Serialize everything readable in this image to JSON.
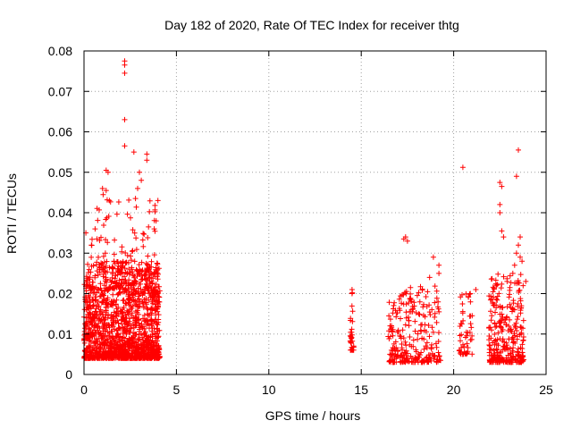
{
  "chart_data": {
    "type": "scatter",
    "title": "Day 182 of 2020, Rate Of TEC Index for receiver thtg",
    "xlabel": "GPS time / hours",
    "ylabel": "ROTI / TECUs",
    "xlim": [
      0,
      25
    ],
    "ylim": [
      0,
      0.08
    ],
    "xticks": [
      "0",
      "5",
      "10",
      "15",
      "20",
      "25"
    ],
    "yticks": [
      "0",
      "0.01",
      "0.02",
      "0.03",
      "0.04",
      "0.05",
      "0.06",
      "0.07",
      "0.08"
    ],
    "grid": true,
    "marker": "+",
    "color": "#ff0000",
    "clusters": [
      {
        "x_range": [
          0.0,
          4.1
        ],
        "y_range": [
          0.004,
          0.028
        ],
        "count": 1500
      },
      {
        "x_range": [
          0.3,
          4.0
        ],
        "y_range": [
          0.02,
          0.045
        ],
        "count": 120
      },
      {
        "x_range": [
          14.4,
          14.6
        ],
        "y_range": [
          0.006,
          0.021
        ],
        "count": 30
      },
      {
        "x_range": [
          16.4,
          17.0
        ],
        "y_range": [
          0.003,
          0.018
        ],
        "count": 60
      },
      {
        "x_range": [
          17.0,
          19.3
        ],
        "y_range": [
          0.003,
          0.022
        ],
        "count": 200
      },
      {
        "x_range": [
          20.3,
          21.0
        ],
        "y_range": [
          0.005,
          0.02
        ],
        "count": 50
      },
      {
        "x_range": [
          21.9,
          23.8
        ],
        "y_range": [
          0.003,
          0.025
        ],
        "count": 300
      }
    ],
    "points": [
      [
        2.2,
        0.0775
      ],
      [
        2.2,
        0.0765
      ],
      [
        2.2,
        0.0745
      ],
      [
        2.2,
        0.063
      ],
      [
        2.2,
        0.0565
      ],
      [
        3.4,
        0.0545
      ],
      [
        2.7,
        0.055
      ],
      [
        3.4,
        0.053
      ],
      [
        1.2,
        0.0505
      ],
      [
        1.3,
        0.05
      ],
      [
        3.0,
        0.05
      ],
      [
        3.1,
        0.048
      ],
      [
        1.0,
        0.046
      ],
      [
        1.2,
        0.0455
      ],
      [
        2.9,
        0.046
      ],
      [
        17.4,
        0.034
      ],
      [
        17.5,
        0.033
      ],
      [
        17.3,
        0.0335
      ],
      [
        18.9,
        0.029
      ],
      [
        19.2,
        0.027
      ],
      [
        19.2,
        0.025
      ],
      [
        18.7,
        0.024
      ],
      [
        14.5,
        0.021
      ],
      [
        14.5,
        0.02
      ],
      [
        20.5,
        0.0512
      ],
      [
        21.2,
        0.021
      ],
      [
        20.9,
        0.02
      ],
      [
        23.5,
        0.0555
      ],
      [
        23.4,
        0.049
      ],
      [
        22.5,
        0.0475
      ],
      [
        22.6,
        0.0465
      ],
      [
        22.5,
        0.042
      ],
      [
        22.5,
        0.04
      ],
      [
        22.6,
        0.0355
      ],
      [
        22.7,
        0.034
      ],
      [
        23.6,
        0.034
      ],
      [
        23.5,
        0.032
      ],
      [
        23.4,
        0.03
      ],
      [
        23.6,
        0.029
      ],
      [
        23.3,
        0.027
      ],
      [
        23.7,
        0.028
      ],
      [
        23.2,
        0.025
      ],
      [
        23.9,
        0.023
      ],
      [
        0.1,
        0.035
      ],
      [
        0.4,
        0.032
      ],
      [
        0.6,
        0.036
      ],
      [
        0.7,
        0.0335
      ],
      [
        3.9,
        0.038
      ],
      [
        3.8,
        0.036
      ],
      [
        4.0,
        0.043
      ]
    ]
  }
}
